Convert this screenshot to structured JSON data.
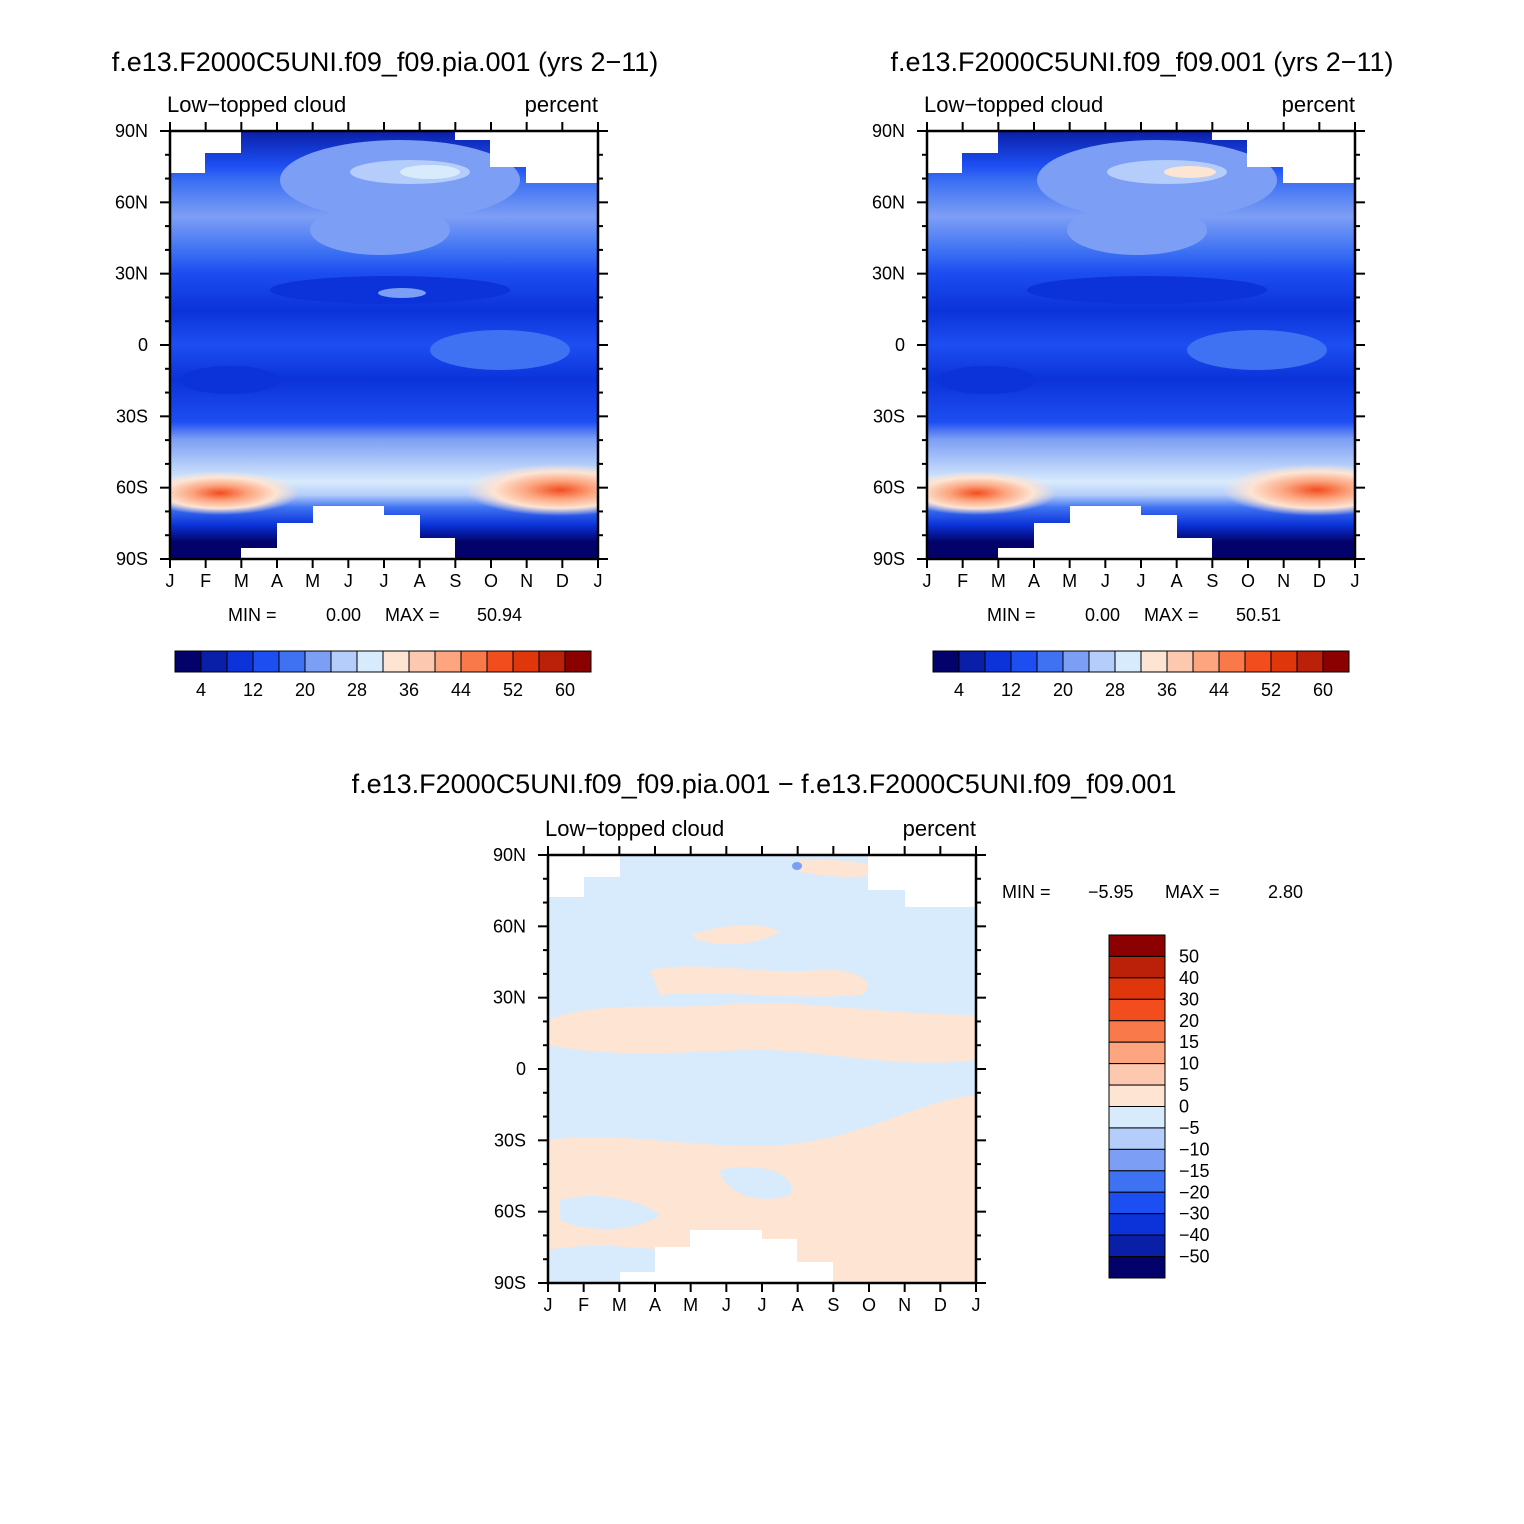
{
  "chart_data": [
    {
      "type": "heatmap",
      "title": "f.e13.F2000C5UNI.f09_f09.pia.001 (yrs 2-11)",
      "left_subtitle": "Low-topped cloud",
      "right_subtitle": "percent",
      "x": [
        "J",
        "F",
        "M",
        "A",
        "M",
        "J",
        "J",
        "A",
        "S",
        "O",
        "N",
        "D",
        "J"
      ],
      "y_ticks": [
        "90N",
        "60N",
        "30N",
        "0",
        "30S",
        "60S",
        "90S"
      ],
      "ylim": [
        -90,
        90
      ],
      "min_label": "MIN =",
      "min_value": "0.00",
      "max_label": "MAX =",
      "max_value": "50.94",
      "colorbar_labels": [
        "4",
        "12",
        "20",
        "28",
        "36",
        "44",
        "52",
        "60"
      ],
      "colorbar_colors": [
        "#03026b",
        "#0a1fa8",
        "#0b33d9",
        "#1d4ef2",
        "#3e72f3",
        "#7d9ef5",
        "#b4cdfa",
        "#d8ebfc",
        "#fde4d3",
        "#fcc9b0",
        "#fca57f",
        "#f9794a",
        "#f24d1d",
        "#e0360c",
        "#bb2008",
        "#8b0000"
      ]
    },
    {
      "type": "heatmap",
      "title": "f.e13.F2000C5UNI.f09_f09.001 (yrs 2-11)",
      "left_subtitle": "Low-topped cloud",
      "right_subtitle": "percent",
      "x": [
        "J",
        "F",
        "M",
        "A",
        "M",
        "J",
        "J",
        "A",
        "S",
        "O",
        "N",
        "D",
        "J"
      ],
      "y_ticks": [
        "90N",
        "60N",
        "30N",
        "0",
        "30S",
        "60S",
        "90S"
      ],
      "ylim": [
        -90,
        90
      ],
      "min_label": "MIN =",
      "min_value": "0.00",
      "max_label": "MAX =",
      "max_value": "50.51",
      "colorbar_labels": [
        "4",
        "12",
        "20",
        "28",
        "36",
        "44",
        "52",
        "60"
      ],
      "colorbar_colors": [
        "#03026b",
        "#0a1fa8",
        "#0b33d9",
        "#1d4ef2",
        "#3e72f3",
        "#7d9ef5",
        "#b4cdfa",
        "#d8ebfc",
        "#fde4d3",
        "#fcc9b0",
        "#fca57f",
        "#f9794a",
        "#f24d1d",
        "#e0360c",
        "#bb2008",
        "#8b0000"
      ]
    },
    {
      "type": "heatmap",
      "title": "f.e13.F2000C5UNI.f09_f09.pia.001 - f.e13.F2000C5UNI.f09_f09.001",
      "left_subtitle": "Low-topped cloud",
      "right_subtitle": "percent",
      "x": [
        "J",
        "F",
        "M",
        "A",
        "M",
        "J",
        "J",
        "A",
        "S",
        "O",
        "N",
        "D",
        "J"
      ],
      "y_ticks": [
        "90N",
        "60N",
        "30N",
        "0",
        "30S",
        "60S",
        "90S"
      ],
      "ylim": [
        -90,
        90
      ],
      "min_label": "MIN =",
      "min_value": "-5.95",
      "max_label": "MAX =",
      "max_value": "2.80",
      "colorbar_labels": [
        "50",
        "40",
        "30",
        "20",
        "15",
        "10",
        "5",
        "0",
        "-5",
        "-10",
        "-15",
        "-20",
        "-30",
        "-40",
        "-50"
      ],
      "colorbar_colors": [
        "#8b0000",
        "#bb2008",
        "#e0360c",
        "#f24d1d",
        "#f9794a",
        "#fca57f",
        "#fcc9b0",
        "#fde4d3",
        "#d8ebfc",
        "#b4cdfa",
        "#7d9ef5",
        "#3e72f3",
        "#1d4ef2",
        "#0b33d9",
        "#0a1fa8",
        "#03026b"
      ]
    }
  ]
}
